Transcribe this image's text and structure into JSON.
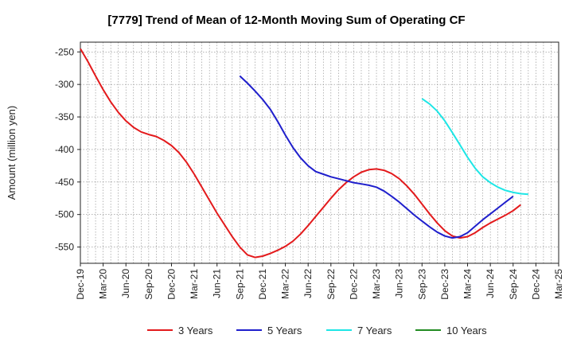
{
  "chart_data": {
    "type": "line",
    "title": "[7779]  Trend of Mean of 12-Month Moving Sum of Operating CF",
    "xlabel": "",
    "ylabel": "Amount (million yen)",
    "ylim": [
      -575,
      -235
    ],
    "yticks": [
      -250,
      -300,
      -350,
      -400,
      -450,
      -500,
      -550
    ],
    "x_tick_labels": [
      "Dec-19",
      "Mar-20",
      "Jun-20",
      "Sep-20",
      "Dec-20",
      "Mar-21",
      "Jun-21",
      "Sep-21",
      "Dec-21",
      "Mar-22",
      "Jun-22",
      "Sep-22",
      "Dec-22",
      "Mar-23",
      "Jun-23",
      "Sep-23",
      "Dec-23",
      "Mar-24",
      "Jun-24",
      "Sep-24",
      "Dec-24",
      "Mar-25"
    ],
    "grid": true,
    "legend_position": "bottom",
    "series": [
      {
        "name": "3 Years",
        "color": "#e31a1c",
        "start_month_index": 0,
        "values": [
          -245,
          -265,
          -287,
          -308,
          -327,
          -343,
          -356,
          -366,
          -373,
          -377,
          -380,
          -386,
          -394,
          -405,
          -420,
          -438,
          -458,
          -478,
          -498,
          -516,
          -534,
          -550,
          -562,
          -566,
          -564,
          -560,
          -555,
          -549,
          -541,
          -530,
          -517,
          -503,
          -489,
          -475,
          -462,
          -451,
          -442,
          -435,
          -431,
          -430,
          -432,
          -437,
          -445,
          -456,
          -469,
          -484,
          -499,
          -513,
          -525,
          -533,
          -536,
          -534,
          -528,
          -520,
          -513,
          -507,
          -501,
          -494,
          -485
        ]
      },
      {
        "name": "5 Years",
        "color": "#1f1fcc",
        "start_month_index": 21,
        "values": [
          -287,
          -298,
          -310,
          -323,
          -338,
          -357,
          -378,
          -397,
          -413,
          -425,
          -434,
          -438,
          -442,
          -445,
          -448,
          -451,
          -453,
          -455,
          -458,
          -464,
          -472,
          -481,
          -491,
          -501,
          -510,
          -519,
          -527,
          -533,
          -536,
          -534,
          -528,
          -518,
          -508,
          -499,
          -490,
          -481,
          -472
        ]
      },
      {
        "name": "7 Years",
        "color": "#1ee6e6",
        "start_month_index": 45,
        "values": [
          -322,
          -330,
          -341,
          -356,
          -374,
          -393,
          -412,
          -429,
          -442,
          -451,
          -458,
          -463,
          -466,
          -468,
          -469
        ]
      },
      {
        "name": "10 Years",
        "color": "#228b22",
        "start_month_index": 0,
        "values": []
      }
    ]
  }
}
